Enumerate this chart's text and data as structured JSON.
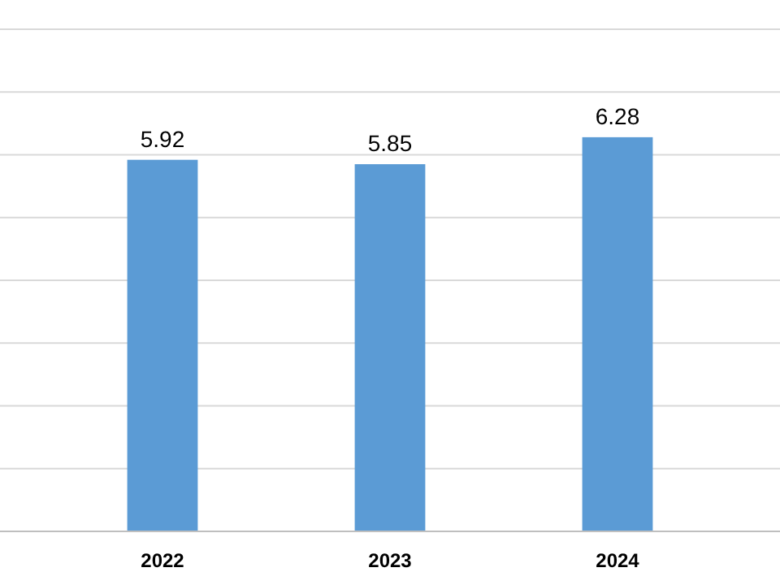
{
  "chart_data": {
    "type": "bar",
    "categories": [
      "2022",
      "2023",
      "2024"
    ],
    "values": [
      5.92,
      5.85,
      6.28
    ],
    "color": "#5b9bd5",
    "ylim": [
      0,
      8
    ],
    "yticks": [
      {
        "value": 0,
        "label": null
      },
      {
        "value": 1,
        "label": null
      },
      {
        "value": 2,
        "label": null
      },
      {
        "value": 3,
        "label": null
      },
      {
        "value": 4,
        "label": null
      },
      {
        "value": 5,
        "label": null
      },
      {
        "value": 6,
        "label": null
      },
      {
        "value": 7,
        "label": null
      },
      {
        "value": 8,
        "label": null
      }
    ],
    "grid": true,
    "tick_labels": "x",
    "data_labels": true
  }
}
